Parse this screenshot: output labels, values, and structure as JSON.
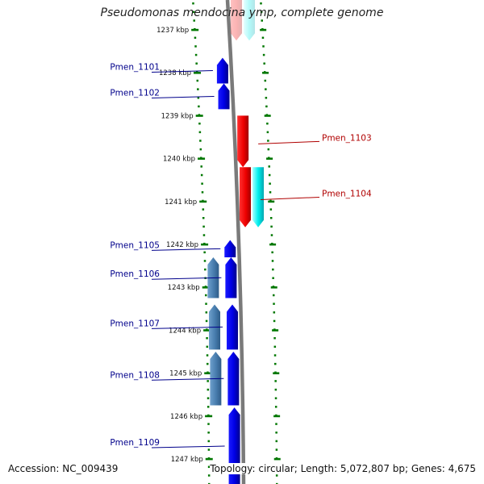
{
  "title": "Pseudomonas mendocina ymp, complete genome",
  "footer": {
    "accession": "Accession: NC_009439",
    "stats": "Topology: circular; Length: 5,072,807 bp; Genes: 4,675"
  },
  "colors": {
    "forward_gene": "#0000ee",
    "forward_other": "#4f86b8",
    "reverse_gene": "#ee0000",
    "reverse_other": "#00e5ee",
    "label_forward": "#00008b",
    "label_reverse": "#b00000",
    "tick": "#007700",
    "backbone": "#888888"
  },
  "ticks": [
    {
      "label": "1237 kbp",
      "kb": 1237
    },
    {
      "label": "1238 kbp",
      "kb": 1238
    },
    {
      "label": "1239 kbp",
      "kb": 1239
    },
    {
      "label": "1240 kbp",
      "kb": 1240
    },
    {
      "label": "1241 kbp",
      "kb": 1241
    },
    {
      "label": "1242 kbp",
      "kb": 1242
    },
    {
      "label": "1243 kbp",
      "kb": 1243
    },
    {
      "label": "1244 kbp",
      "kb": 1244
    },
    {
      "label": "1245 kbp",
      "kb": 1245
    },
    {
      "label": "1246 kbp",
      "kb": 1246
    },
    {
      "label": "1247 kbp",
      "kb": 1247
    }
  ],
  "features": [
    {
      "strand": "+",
      "track": 1,
      "type": "gene",
      "start": 1236.0,
      "end": 1237.25,
      "faded": true,
      "label": ""
    },
    {
      "strand": "+",
      "track": 2,
      "type": "other",
      "start": 1236.0,
      "end": 1237.25,
      "faded": true,
      "label": ""
    },
    {
      "strand": "-",
      "track": 1,
      "type": "gene",
      "start": 1237.65,
      "end": 1238.25,
      "label": "Pmen_1101"
    },
    {
      "strand": "-",
      "track": 1,
      "type": "gene",
      "start": 1238.25,
      "end": 1238.85,
      "label": "Pmen_1102"
    },
    {
      "strand": "+",
      "track": 1,
      "type": "gene",
      "start": 1239.0,
      "end": 1240.2,
      "label": "Pmen_1103"
    },
    {
      "strand": "+",
      "track": 1,
      "type": "gene",
      "start": 1240.2,
      "end": 1241.6,
      "label": "Pmen_1104"
    },
    {
      "strand": "+",
      "track": 2,
      "type": "other",
      "start": 1240.2,
      "end": 1241.6,
      "label": ""
    },
    {
      "strand": "-",
      "track": 1,
      "type": "gene",
      "start": 1241.9,
      "end": 1242.3,
      "label": "Pmen_1105"
    },
    {
      "strand": "-",
      "track": 1,
      "type": "gene",
      "start": 1242.3,
      "end": 1243.25,
      "label": "Pmen_1106"
    },
    {
      "strand": "-",
      "track": 2,
      "type": "other",
      "start": 1242.3,
      "end": 1243.25,
      "label": ""
    },
    {
      "strand": "-",
      "track": 1,
      "type": "gene",
      "start": 1243.4,
      "end": 1244.45,
      "label": "Pmen_1107"
    },
    {
      "strand": "-",
      "track": 2,
      "type": "other",
      "start": 1243.4,
      "end": 1244.45,
      "label": ""
    },
    {
      "strand": "-",
      "track": 1,
      "type": "gene",
      "start": 1244.5,
      "end": 1245.75,
      "label": "Pmen_1108"
    },
    {
      "strand": "-",
      "track": 2,
      "type": "other",
      "start": 1244.5,
      "end": 1245.75,
      "label": ""
    },
    {
      "strand": "-",
      "track": 1,
      "type": "gene",
      "start": 1245.8,
      "end": 1247.6,
      "label": "Pmen_1109"
    },
    {
      "strand": "-",
      "track": 2,
      "type": "other",
      "start": 1247.6,
      "end": 1248.0,
      "label": ""
    },
    {
      "strand": "-",
      "track": 1,
      "type": "gene",
      "start": 1247.6,
      "end": 1248.0,
      "label": ""
    }
  ]
}
